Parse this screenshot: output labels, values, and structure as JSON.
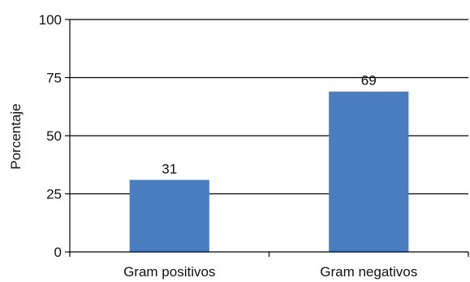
{
  "chart_data": {
    "type": "bar",
    "categories": [
      "Gram positivos",
      "Gram negativos"
    ],
    "values": [
      31,
      69
    ],
    "data_labels": [
      "31",
      "69"
    ],
    "title": "",
    "xlabel": "",
    "ylabel": "Porcentaje",
    "ylim": [
      0,
      100
    ],
    "yticks": [
      0,
      25,
      50,
      75,
      100
    ],
    "ytick_labels": [
      "0",
      "25",
      "50",
      "75",
      "100"
    ],
    "grid": true,
    "legend": "none",
    "colors": {
      "bar": "#4a7cc0",
      "grid": "#000000",
      "axis": "#000000",
      "text": "#111111"
    }
  }
}
